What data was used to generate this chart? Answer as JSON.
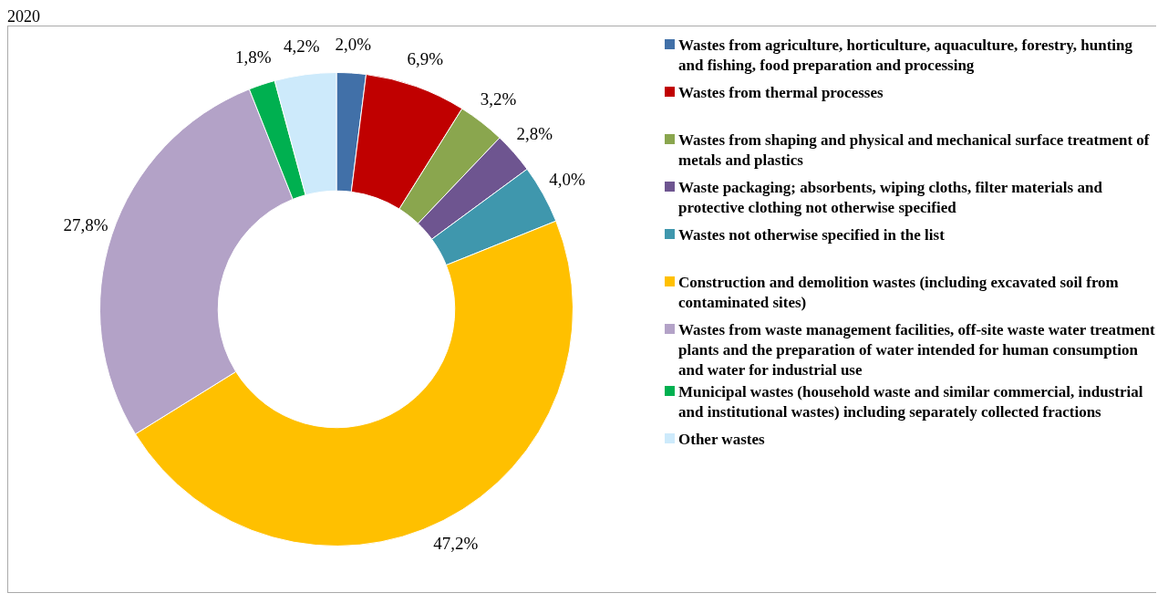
{
  "chart_data": {
    "type": "donut",
    "title": "2020",
    "categories": [
      "Wastes from agriculture, horticulture, aquaculture, forestry, hunting and fishing, food preparation and processing",
      "Wastes from thermal processes",
      "Wastes from shaping and physical and mechanical surface treatment of metals and plastics",
      "Waste packaging; absorbents, wiping cloths, filter materials and protective clothing not otherwise specified",
      "Wastes not otherwise specified in the list",
      "Construction and demolition wastes (including excavated soil from contaminated sites)",
      "Wastes from waste management facilities, off-site waste water treatment plants and the preparation of water intended for human consumption and water for industrial use",
      "Municipal wastes (household waste and similar commercial, industrial and institutional wastes) including separately collected fractions",
      "Other wastes"
    ],
    "values": [
      2.0,
      6.9,
      3.2,
      2.8,
      4.0,
      47.2,
      27.8,
      1.8,
      4.2
    ],
    "value_labels": [
      "2,0%",
      "6,9%",
      "3,2%",
      "2,8%",
      "4,0%",
      "47,2%",
      "27,8%",
      "1,8%",
      "4,2%"
    ],
    "colors": [
      "#4170a8",
      "#c00000",
      "#8aa64e",
      "#6e5590",
      "#3f97ad",
      "#ffc000",
      "#b3a2c7",
      "#00b050",
      "#cdeafb"
    ],
    "legend": "right"
  }
}
